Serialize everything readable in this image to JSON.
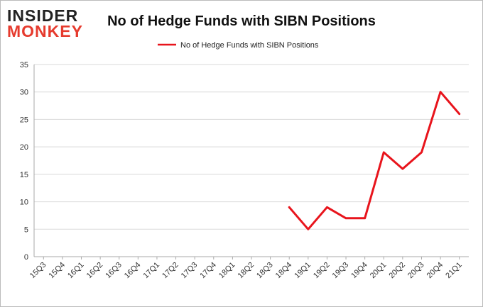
{
  "logo": {
    "line1": "INSIDER",
    "line2": "MONKEY"
  },
  "colors": {
    "series": "#e8141c",
    "grid": "#d9d9d9",
    "axis": "#aaaaaa",
    "frame": "#bbbbbb"
  },
  "chart_data": {
    "type": "line",
    "title": "No of Hedge Funds with SIBN Positions",
    "xlabel": "",
    "ylabel": "",
    "ylim": [
      0,
      35
    ],
    "yticks": [
      0,
      5,
      10,
      15,
      20,
      25,
      30,
      35
    ],
    "grid": true,
    "legend_position": "top-center",
    "categories": [
      "15Q3",
      "15Q4",
      "16Q1",
      "16Q2",
      "16Q3",
      "16Q4",
      "17Q1",
      "17Q2",
      "17Q3",
      "17Q4",
      "18Q1",
      "18Q2",
      "18Q3",
      "18Q4",
      "19Q1",
      "19Q2",
      "19Q3",
      "19Q4",
      "20Q1",
      "20Q2",
      "20Q3",
      "20Q4",
      "21Q1"
    ],
    "series": [
      {
        "name": "No of Hedge Funds with SIBN Positions",
        "values": [
          null,
          null,
          null,
          null,
          null,
          null,
          null,
          null,
          null,
          null,
          null,
          null,
          null,
          9,
          5,
          9,
          7,
          7,
          19,
          16,
          19,
          30,
          26
        ]
      }
    ]
  }
}
